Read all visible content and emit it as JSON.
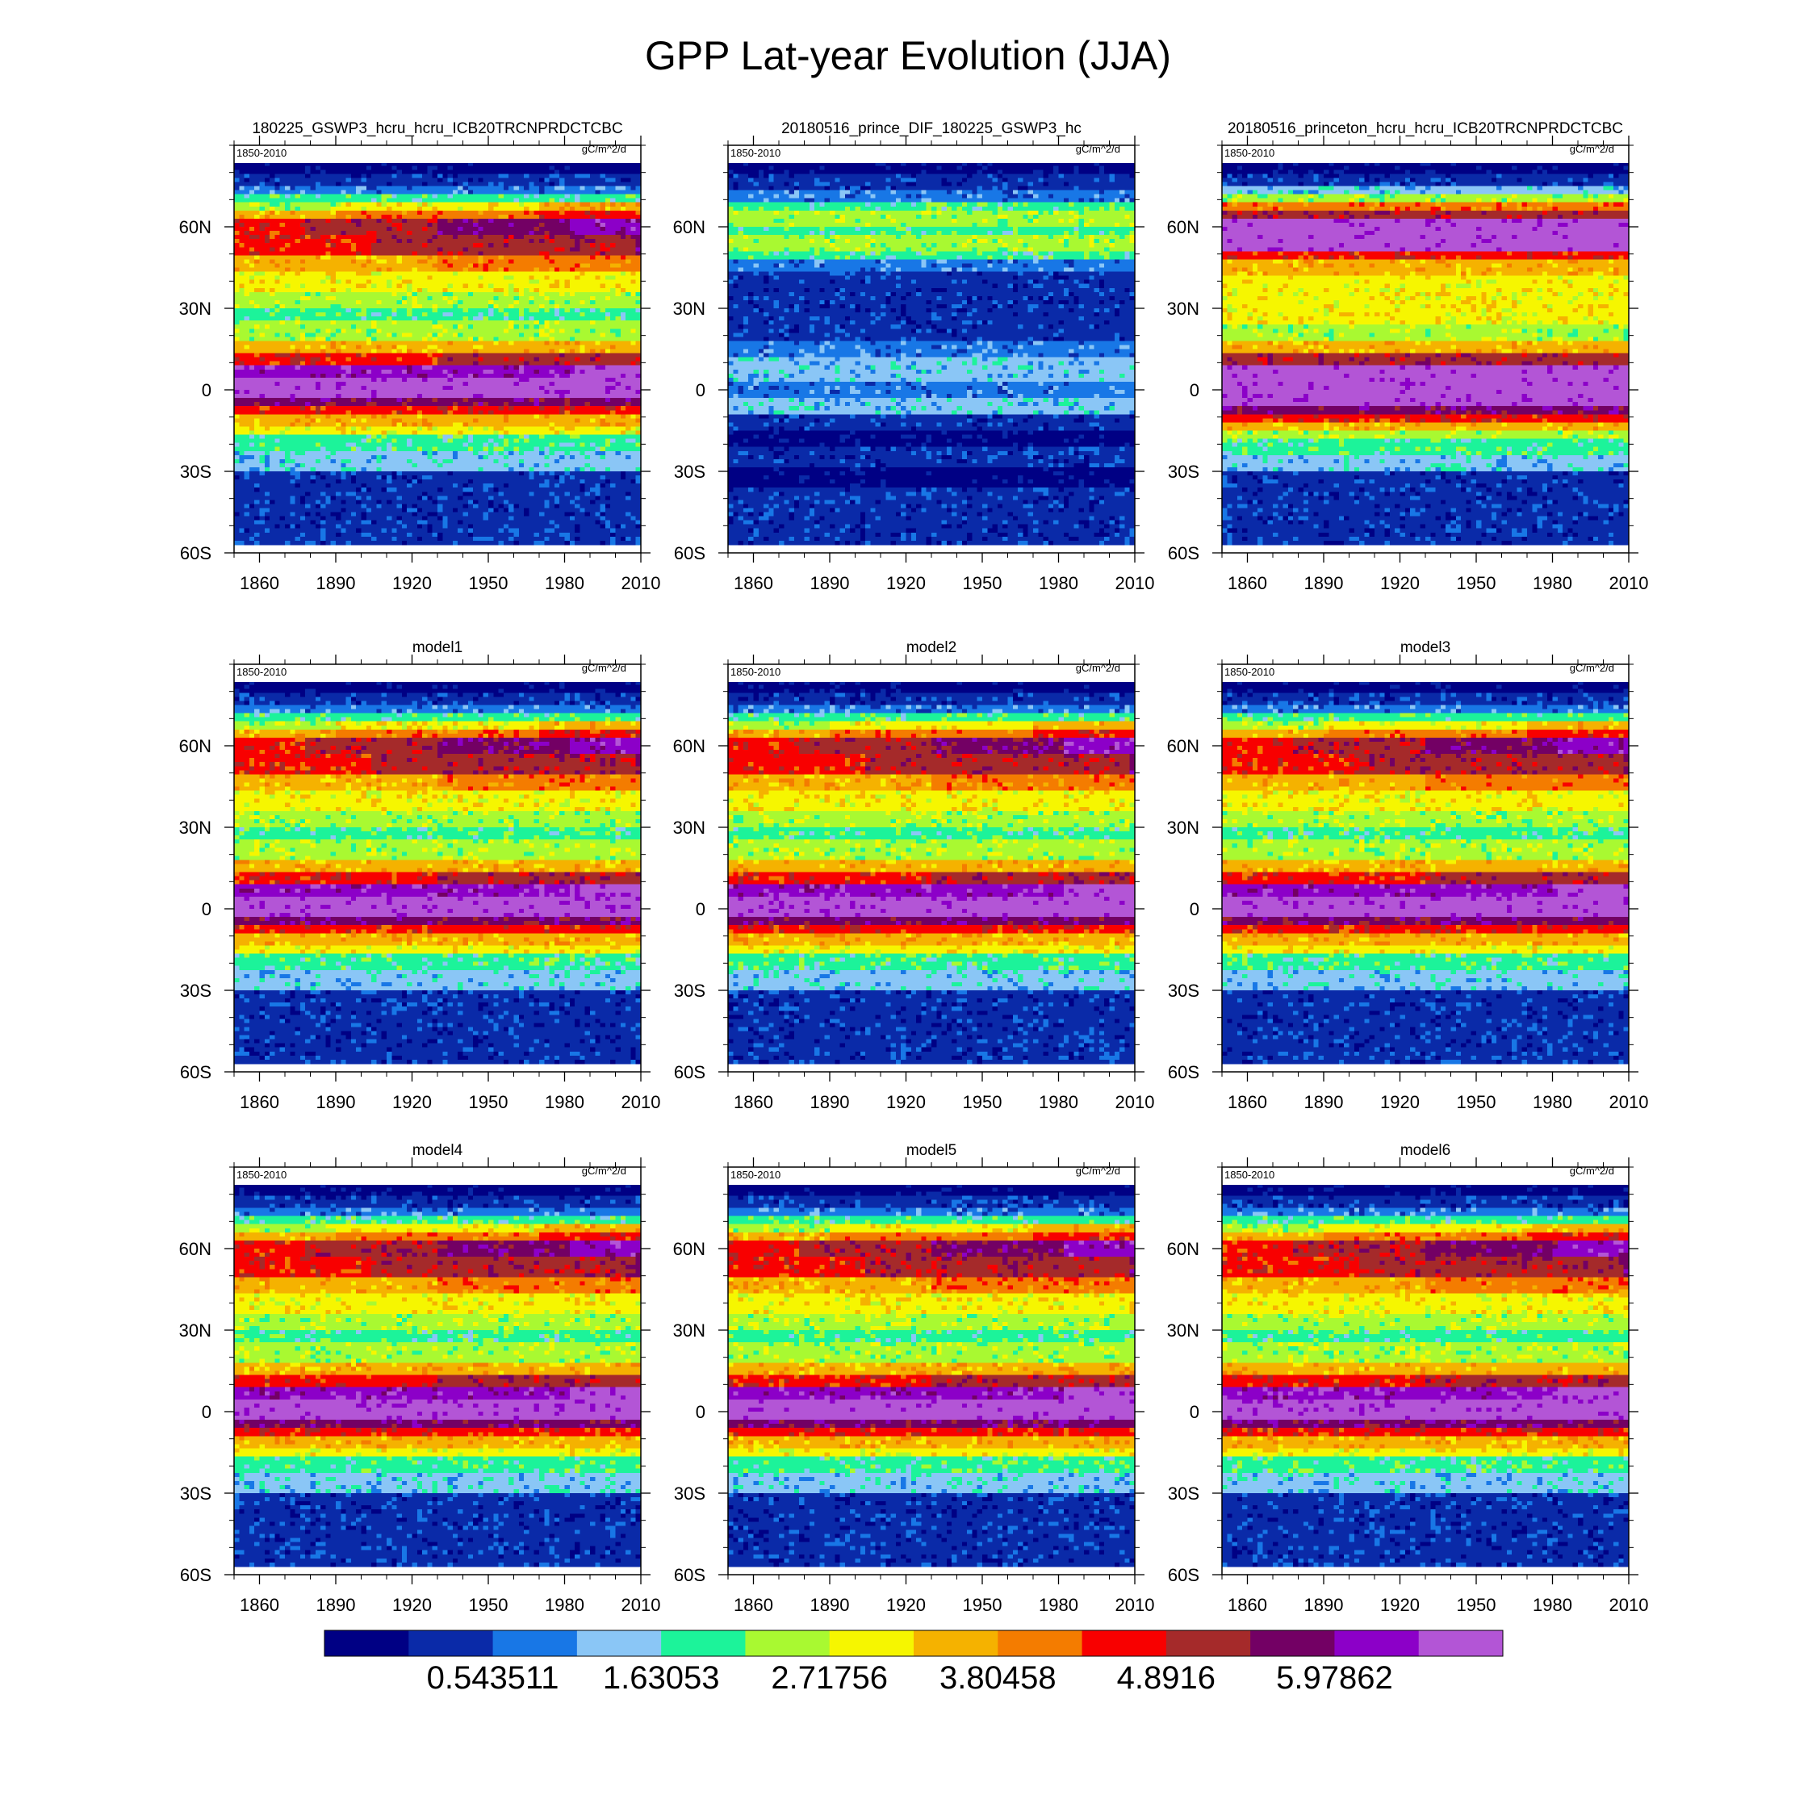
{
  "figure": {
    "title": "GPP Lat-year Evolution (JJA)"
  },
  "colors": {
    "levels": [
      "#000084",
      "#0a2aa8",
      "#1877e6",
      "#8ac6f6",
      "#1cf39a",
      "#a9f931",
      "#f6f600",
      "#f5b200",
      "#f47c00",
      "#f80000",
      "#a52a2a",
      "#730064",
      "#8c00c8",
      "#b355d6"
    ]
  },
  "chart_data": [
    {
      "type": "heatmap",
      "title": "180225_GSWP3_hcru_hcru_ICB20TRCNPRDCTCBC",
      "period_label": "1850-2010",
      "units_label": "gC/m^2/d",
      "xlim": [
        1850,
        2010
      ],
      "ylim": [
        -60,
        90
      ],
      "xticks": [
        1860,
        1890,
        1920,
        1950,
        1980,
        2010
      ],
      "yticks": [
        "60S",
        "30S",
        "0",
        "30N",
        "60N"
      ],
      "profile": "full"
    },
    {
      "type": "heatmap",
      "title": "20180516_prince_DIF_180225_GSWP3_hc",
      "period_label": "1850-2010",
      "units_label": "gC/m^2/d",
      "xlim": [
        1850,
        2010
      ],
      "ylim": [
        -60,
        90
      ],
      "xticks": [
        1860,
        1890,
        1920,
        1950,
        1980,
        2010
      ],
      "yticks": [
        "60S",
        "30S",
        "0",
        "30N",
        "60N"
      ],
      "profile": "diff"
    },
    {
      "type": "heatmap",
      "title": "20180516_princeton_hcru_hcru_ICB20TRCNPRDCTCBC",
      "period_label": "1850-2010",
      "units_label": "gC/m^2/d",
      "xlim": [
        1850,
        2010
      ],
      "ylim": [
        -60,
        90
      ],
      "xticks": [
        1860,
        1890,
        1920,
        1950,
        1980,
        2010
      ],
      "yticks": [
        "60S",
        "30S",
        "0",
        "30N",
        "60N"
      ],
      "profile": "princeton"
    },
    {
      "type": "heatmap",
      "title": "model1",
      "period_label": "1850-2010",
      "units_label": "gC/m^2/d",
      "xlim": [
        1850,
        2010
      ],
      "ylim": [
        -60,
        90
      ],
      "xticks": [
        1860,
        1890,
        1920,
        1950,
        1980,
        2010
      ],
      "yticks": [
        "60S",
        "30S",
        "0",
        "30N",
        "60N"
      ],
      "profile": "full"
    },
    {
      "type": "heatmap",
      "title": "model2",
      "period_label": "1850-2010",
      "units_label": "gC/m^2/d",
      "xlim": [
        1850,
        2010
      ],
      "ylim": [
        -60,
        90
      ],
      "xticks": [
        1860,
        1890,
        1920,
        1950,
        1980,
        2010
      ],
      "yticks": [
        "60S",
        "30S",
        "0",
        "30N",
        "60N"
      ],
      "profile": "full"
    },
    {
      "type": "heatmap",
      "title": "model3",
      "period_label": "1850-2010",
      "units_label": "gC/m^2/d",
      "xlim": [
        1850,
        2010
      ],
      "ylim": [
        -60,
        90
      ],
      "xticks": [
        1860,
        1890,
        1920,
        1950,
        1980,
        2010
      ],
      "yticks": [
        "60S",
        "30S",
        "0",
        "30N",
        "60N"
      ],
      "profile": "full"
    },
    {
      "type": "heatmap",
      "title": "model4",
      "period_label": "1850-2010",
      "units_label": "gC/m^2/d",
      "xlim": [
        1850,
        2010
      ],
      "ylim": [
        -60,
        90
      ],
      "xticks": [
        1860,
        1890,
        1920,
        1950,
        1980,
        2010
      ],
      "yticks": [
        "60S",
        "30S",
        "0",
        "30N",
        "60N"
      ],
      "profile": "full"
    },
    {
      "type": "heatmap",
      "title": "model5",
      "period_label": "1850-2010",
      "units_label": "gC/m^2/d",
      "xlim": [
        1850,
        2010
      ],
      "ylim": [
        -60,
        90
      ],
      "xticks": [
        1860,
        1890,
        1920,
        1950,
        1980,
        2010
      ],
      "yticks": [
        "60S",
        "30S",
        "0",
        "30N",
        "60N"
      ],
      "profile": "full"
    },
    {
      "type": "heatmap",
      "title": "model6",
      "period_label": "1850-2010",
      "units_label": "gC/m^2/d",
      "xlim": [
        1850,
        2010
      ],
      "ylim": [
        -60,
        90
      ],
      "xticks": [
        1860,
        1890,
        1920,
        1950,
        1980,
        2010
      ],
      "yticks": [
        "60S",
        "30S",
        "0",
        "30N",
        "60N"
      ],
      "profile": "full"
    }
  ],
  "colorbar": {
    "labels": [
      "0.543511",
      "1.63053",
      "2.71756",
      "3.80458",
      "4.8916",
      "5.97862"
    ]
  }
}
